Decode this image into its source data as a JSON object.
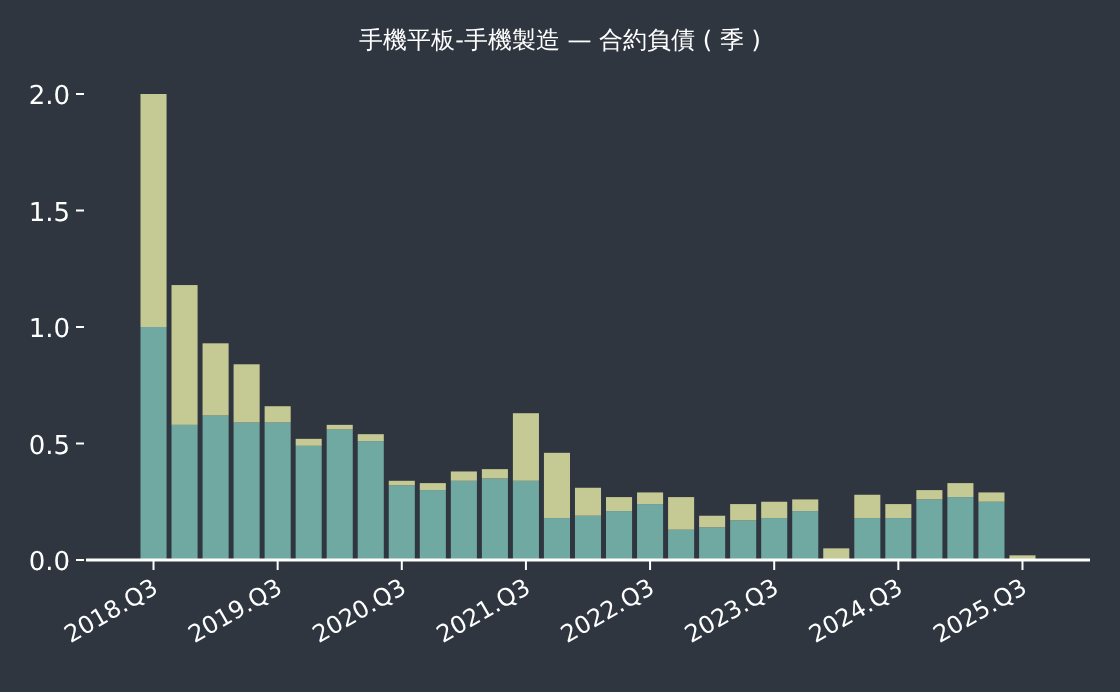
{
  "chart_data": {
    "type": "bar",
    "title": "手機平板-手機製造 — 合約負債 ( 季 )",
    "stacked": true,
    "categories": [
      "2018.Q3",
      null,
      null,
      null,
      "2019.Q3",
      null,
      null,
      null,
      "2020.Q3",
      null,
      null,
      null,
      "2021.Q3",
      null,
      null,
      null,
      "2022.Q3",
      null,
      null,
      null,
      "2023.Q3",
      null,
      null,
      null,
      "2024.Q3",
      null,
      null,
      null,
      "2025.Q3"
    ],
    "series": [
      {
        "color": "#70a8a2",
        "values": [
          1.0,
          0.58,
          0.62,
          0.59,
          0.59,
          0.49,
          0.56,
          0.51,
          0.32,
          0.3,
          0.34,
          0.35,
          0.34,
          0.18,
          0.19,
          0.21,
          0.24,
          0.13,
          0.14,
          0.17,
          0.18,
          0.21,
          0,
          0.18,
          0.18,
          0.26,
          0.27,
          0.25,
          0
        ]
      },
      {
        "color": "#c5c993",
        "values": [
          1.0,
          0.6,
          0.31,
          0.25,
          0.07,
          0.03,
          0.02,
          0.03,
          0.02,
          0.03,
          0.04,
          0.04,
          0.29,
          0.28,
          0.12,
          0.06,
          0.05,
          0.14,
          0.05,
          0.07,
          0.07,
          0.05,
          0.05,
          0.1,
          0.06,
          0.04,
          0.06,
          0.04,
          0.02
        ]
      }
    ],
    "ylim": [
      0,
      2
    ],
    "yticks": [
      {
        "value": 0,
        "label": "0.0"
      },
      {
        "value": 0.5,
        "label": "0.5"
      },
      {
        "value": 1,
        "label": "1.0"
      },
      {
        "value": 1.5,
        "label": "1.5"
      },
      {
        "value": 2,
        "label": "2.0"
      }
    ]
  }
}
